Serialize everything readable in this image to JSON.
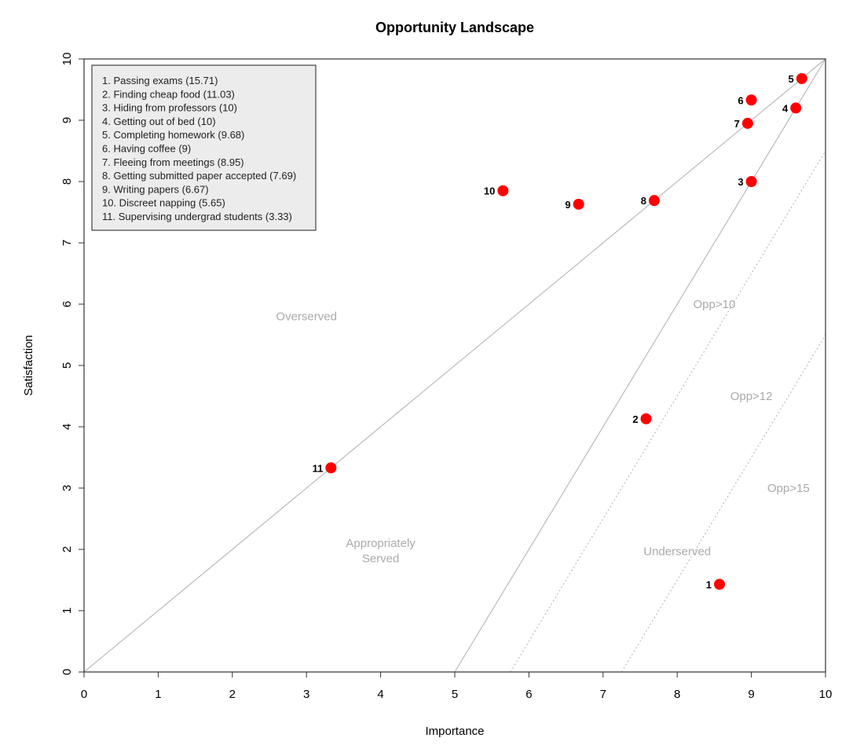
{
  "chart_data": {
    "type": "scatter",
    "title": "Opportunity Landscape",
    "xlabel": "Importance",
    "ylabel": "Satisfaction",
    "xlim": [
      0,
      10
    ],
    "ylim": [
      0,
      10
    ],
    "xticks": [
      "0",
      "1",
      "2",
      "3",
      "4",
      "5",
      "6",
      "7",
      "8",
      "9",
      "10"
    ],
    "yticks": [
      "0",
      "1",
      "2",
      "3",
      "4",
      "5",
      "6",
      "7",
      "8",
      "9",
      "10"
    ],
    "grid": false,
    "legend_position": "top-left",
    "point_color": "#ff0000",
    "points": [
      {
        "label": "1",
        "x": 8.57,
        "y": 1.43
      },
      {
        "label": "2",
        "x": 7.58,
        "y": 4.13
      },
      {
        "label": "3",
        "x": 9.0,
        "y": 8.0
      },
      {
        "label": "4",
        "x": 9.6,
        "y": 9.2
      },
      {
        "label": "5",
        "x": 9.68,
        "y": 9.68
      },
      {
        "label": "6",
        "x": 9.0,
        "y": 9.33
      },
      {
        "label": "7",
        "x": 8.95,
        "y": 8.95
      },
      {
        "label": "8",
        "x": 7.69,
        "y": 7.69
      },
      {
        "label": "9",
        "x": 6.67,
        "y": 7.63
      },
      {
        "label": "10",
        "x": 5.65,
        "y": 7.85
      },
      {
        "label": "11",
        "x": 3.33,
        "y": 3.33
      }
    ],
    "legend": [
      "1. Passing exams (15.71)",
      "2. Finding cheap food (11.03)",
      "3. Hiding from professors (10)",
      "4. Getting out of bed (10)",
      "5. Completing homework (9.68)",
      "6. Having coffee (9)",
      "7. Fleeing from meetings (8.95)",
      "8. Getting submitted paper accepted (7.69)",
      "9. Writing papers (6.67)",
      "10. Discreet napping (5.65)",
      "11. Supervising undergrad students (3.33)"
    ],
    "reference_lines": [
      {
        "from": [
          0,
          0
        ],
        "to": [
          10,
          10
        ],
        "style": "solid"
      },
      {
        "from": [
          5,
          0
        ],
        "to": [
          10,
          10
        ],
        "style": "solid"
      },
      {
        "from": [
          5.75,
          0
        ],
        "to": [
          10,
          8.5
        ],
        "style": "dotted"
      },
      {
        "from": [
          7.25,
          0
        ],
        "to": [
          10,
          5.5
        ],
        "style": "dotted"
      }
    ],
    "region_labels": [
      {
        "text": "Overserved",
        "x": 3.0,
        "y": 5.8
      },
      {
        "text": "Appropriately",
        "x": 4.0,
        "y": 2.1
      },
      {
        "text": "Served",
        "x": 4.0,
        "y": 1.85
      },
      {
        "text": "Underserved",
        "x": 8.0,
        "y": 1.97
      },
      {
        "text": "Opp>10",
        "x": 8.5,
        "y": 6.0
      },
      {
        "text": "Opp>12",
        "x": 9.0,
        "y": 4.5
      },
      {
        "text": "Opp>15",
        "x": 9.5,
        "y": 3.0
      }
    ]
  }
}
